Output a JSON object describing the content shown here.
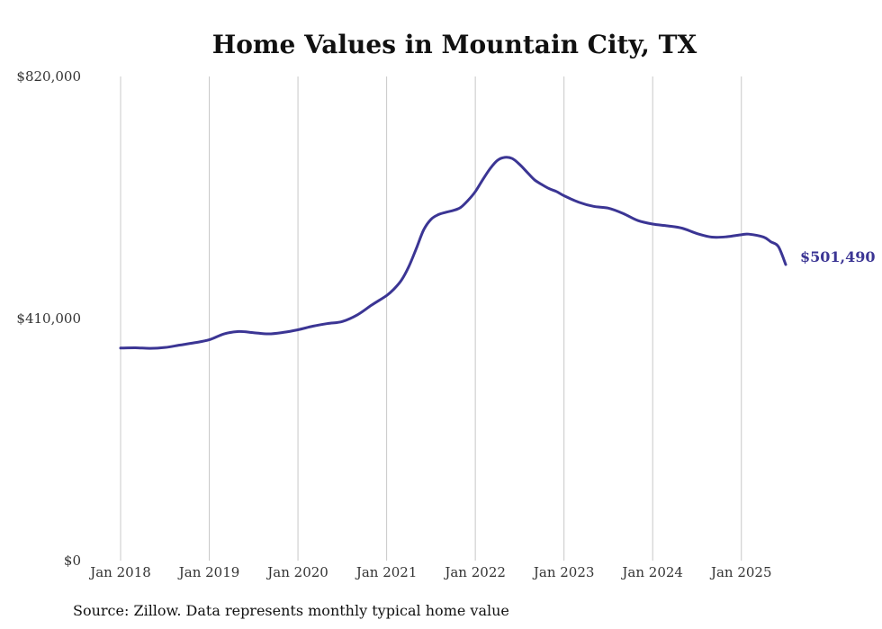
{
  "chart_data": {
    "type": "line",
    "title": "Home Values in Mountain City, TX",
    "source": "Source: Zillow. Data represents monthly typical home value",
    "xlabel": "",
    "ylabel": "",
    "ylim": [
      0,
      820000
    ],
    "y_ticks": [
      {
        "value": 0,
        "label": "$0"
      },
      {
        "value": 410000,
        "label": "$410,000"
      },
      {
        "value": 820000,
        "label": "$820,000"
      }
    ],
    "x_ticks": [
      {
        "value": 2018.0,
        "label": "Jan 2018"
      },
      {
        "value": 2019.0,
        "label": "Jan 2019"
      },
      {
        "value": 2020.0,
        "label": "Jan 2020"
      },
      {
        "value": 2021.0,
        "label": "Jan 2021"
      },
      {
        "value": 2022.0,
        "label": "Jan 2022"
      },
      {
        "value": 2023.0,
        "label": "Jan 2023"
      },
      {
        "value": 2024.0,
        "label": "Jan 2024"
      },
      {
        "value": 2025.0,
        "label": "Jan 2025"
      }
    ],
    "xlim": [
      2018.0,
      2025.5
    ],
    "grid": "vertical",
    "series_color": "#3b3594",
    "end_label": "$501,490",
    "series": [
      {
        "x": [
          2018.0,
          2018.167,
          2018.333,
          2018.5,
          2018.667,
          2018.833,
          2019.0,
          2019.167,
          2019.333,
          2019.5,
          2019.667,
          2019.833,
          2020.0,
          2020.167,
          2020.333,
          2020.5,
          2020.667,
          2020.833,
          2021.0,
          2021.083,
          2021.167,
          2021.25,
          2021.333,
          2021.417,
          2021.5,
          2021.583,
          2021.667,
          2021.75,
          2021.833,
          2021.917,
          2022.0,
          2022.083,
          2022.167,
          2022.25,
          2022.333,
          2022.417,
          2022.5,
          2022.583,
          2022.667,
          2022.75,
          2022.833,
          2022.917,
          2023.0,
          2023.167,
          2023.333,
          2023.5,
          2023.667,
          2023.833,
          2024.0,
          2024.167,
          2024.333,
          2024.5,
          2024.667,
          2024.833,
          2025.0,
          2025.083,
          2025.25,
          2025.333,
          2025.417,
          2025.5
        ],
        "y": [
          360000,
          360500,
          359500,
          361000,
          365000,
          369000,
          374000,
          384000,
          388000,
          386000,
          384000,
          386500,
          391000,
          397000,
          401500,
          405000,
          416000,
          433000,
          449000,
          460000,
          475000,
          498000,
          528000,
          560000,
          578000,
          586000,
          590000,
          593000,
          598000,
          610000,
          625000,
          645000,
          664000,
          678000,
          683000,
          681000,
          671000,
          658000,
          645000,
          637000,
          630000,
          625000,
          618000,
          607000,
          600000,
          597000,
          588000,
          576000,
          570000,
          567000,
          563000,
          554000,
          548000,
          548500,
          552000,
          553000,
          548000,
          540000,
          532000,
          501490
        ]
      }
    ]
  }
}
